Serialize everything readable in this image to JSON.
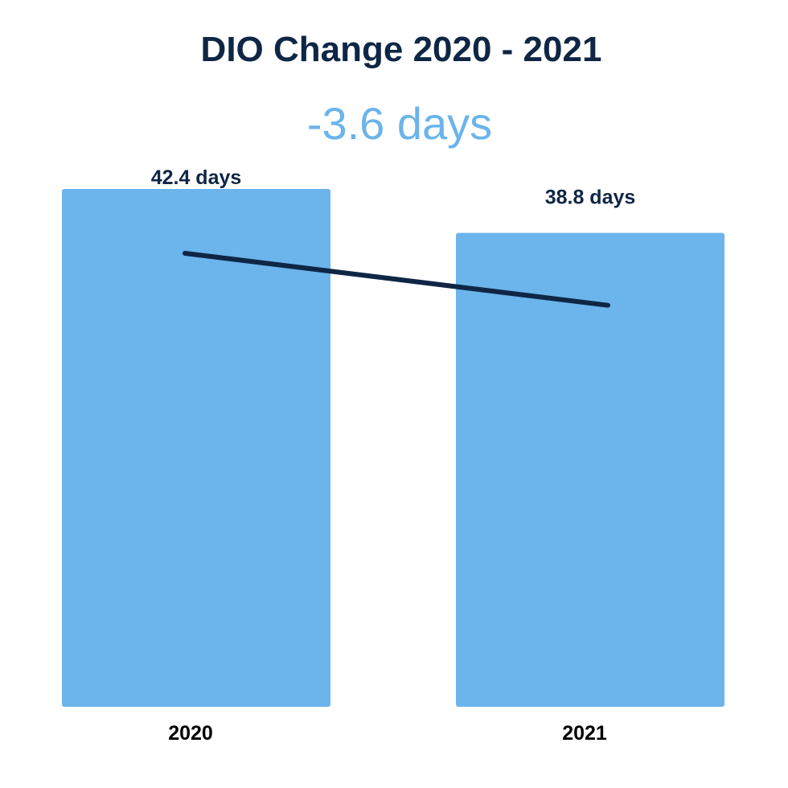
{
  "colors": {
    "bar": "#6BB4EC",
    "dark": "#0F2645",
    "headline": "#6BB4EC",
    "background": "#FFFFFF"
  },
  "chart_data": {
    "type": "bar",
    "title": "DIO Change 2020 - 2021",
    "subtitle": "-3.6 days",
    "categories": [
      "2020",
      "2021"
    ],
    "values": [
      42.4,
      38.8
    ],
    "data_labels": [
      "42.4 days",
      "38.8 days"
    ],
    "trend_line": true,
    "legend": "none",
    "grid": false,
    "ylim": [
      0,
      42.4
    ],
    "xlabel": "",
    "ylabel": ""
  }
}
